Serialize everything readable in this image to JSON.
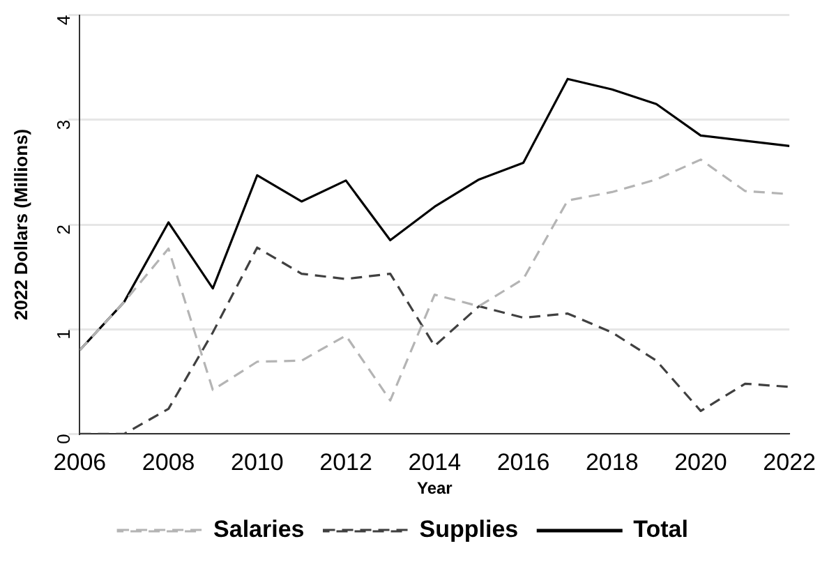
{
  "chart_data": {
    "type": "line",
    "xlabel": "Year",
    "ylabel": "2022 Dollars (Millions)",
    "x": [
      2006,
      2007,
      2008,
      2009,
      2010,
      2011,
      2012,
      2013,
      2014,
      2015,
      2016,
      2017,
      2018,
      2019,
      2020,
      2021,
      2022
    ],
    "series": [
      {
        "name": "Salaries",
        "color": "#b4b4b4",
        "line_style": "dashed",
        "values": [
          0.8,
          1.26,
          1.77,
          0.42,
          0.69,
          0.7,
          0.94,
          0.32,
          1.33,
          1.22,
          1.48,
          2.23,
          2.31,
          2.43,
          2.62,
          2.32,
          2.29
        ]
      },
      {
        "name": "Supplies",
        "color": "#404040",
        "line_style": "dashed",
        "values": [
          0,
          0,
          0.24,
          0.97,
          1.78,
          1.53,
          1.48,
          1.53,
          0.84,
          1.22,
          1.11,
          1.15,
          0.97,
          0.7,
          0.22,
          0.48,
          0.45
        ]
      },
      {
        "name": "Total",
        "color": "#000000",
        "line_style": "solid",
        "values": [
          0.8,
          1.26,
          2.02,
          1.39,
          2.47,
          2.22,
          2.42,
          1.85,
          2.17,
          2.43,
          2.59,
          3.39,
          3.29,
          3.15,
          2.85,
          2.8,
          2.75
        ]
      }
    ],
    "xlim": [
      2006,
      2022
    ],
    "xticks": [
      2006,
      2008,
      2010,
      2012,
      2014,
      2016,
      2018,
      2020,
      2022
    ],
    "ylim": [
      0,
      4
    ],
    "yticks": [
      0,
      1,
      2,
      3,
      4
    ],
    "grid": "y",
    "legend": "bottom",
    "marker": "none"
  }
}
